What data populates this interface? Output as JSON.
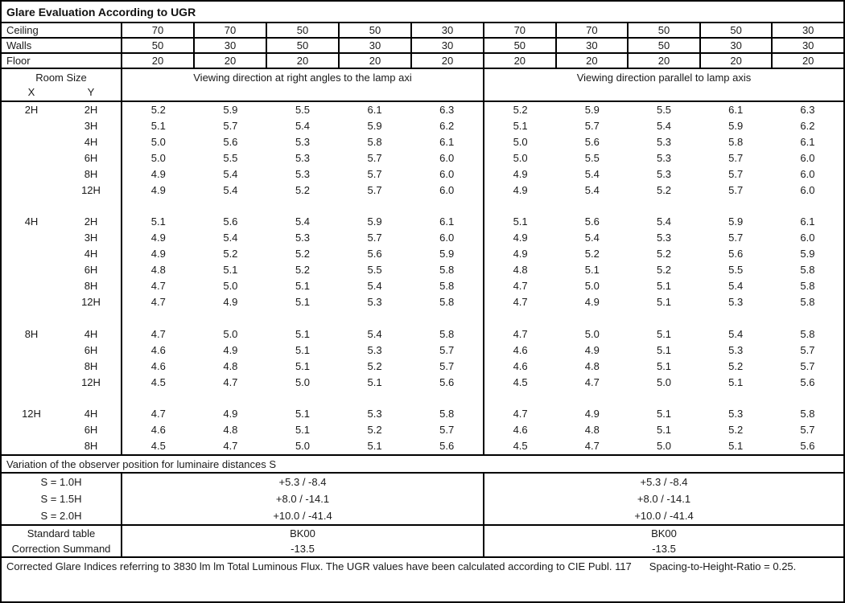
{
  "title": "Glare Evaluation According to UGR",
  "colors": {
    "border": "#000000",
    "text": "#1a1a1a",
    "background": "#ffffff"
  },
  "surface_rows": [
    {
      "label": "Ceiling",
      "values": [
        "70",
        "70",
        "50",
        "50",
        "30",
        "70",
        "70",
        "50",
        "50",
        "30"
      ]
    },
    {
      "label": "Walls",
      "values": [
        "50",
        "30",
        "50",
        "30",
        "30",
        "50",
        "30",
        "50",
        "30",
        "30"
      ]
    },
    {
      "label": "Floor",
      "values": [
        "20",
        "20",
        "20",
        "20",
        "20",
        "20",
        "20",
        "20",
        "20",
        "20"
      ]
    }
  ],
  "room_size": {
    "title": "Room Size",
    "x": "X",
    "y": "Y"
  },
  "viewing": {
    "left": "Viewing direction at right angles to the lamp axi",
    "right": "Viewing direction parallel to lamp axis"
  },
  "ugr_blocks": [
    {
      "x": "2H",
      "rows": [
        {
          "y": "2H",
          "left": [
            "5.2",
            "5.9",
            "5.5",
            "6.1",
            "6.3"
          ],
          "right": [
            "5.2",
            "5.9",
            "5.5",
            "6.1",
            "6.3"
          ]
        },
        {
          "y": "3H",
          "left": [
            "5.1",
            "5.7",
            "5.4",
            "5.9",
            "6.2"
          ],
          "right": [
            "5.1",
            "5.7",
            "5.4",
            "5.9",
            "6.2"
          ]
        },
        {
          "y": "4H",
          "left": [
            "5.0",
            "5.6",
            "5.3",
            "5.8",
            "6.1"
          ],
          "right": [
            "5.0",
            "5.6",
            "5.3",
            "5.8",
            "6.1"
          ]
        },
        {
          "y": "6H",
          "left": [
            "5.0",
            "5.5",
            "5.3",
            "5.7",
            "6.0"
          ],
          "right": [
            "5.0",
            "5.5",
            "5.3",
            "5.7",
            "6.0"
          ]
        },
        {
          "y": "8H",
          "left": [
            "4.9",
            "5.4",
            "5.3",
            "5.7",
            "6.0"
          ],
          "right": [
            "4.9",
            "5.4",
            "5.3",
            "5.7",
            "6.0"
          ]
        },
        {
          "y": "12H",
          "left": [
            "4.9",
            "5.4",
            "5.2",
            "5.7",
            "6.0"
          ],
          "right": [
            "4.9",
            "5.4",
            "5.2",
            "5.7",
            "6.0"
          ]
        }
      ]
    },
    {
      "x": "4H",
      "rows": [
        {
          "y": "2H",
          "left": [
            "5.1",
            "5.6",
            "5.4",
            "5.9",
            "6.1"
          ],
          "right": [
            "5.1",
            "5.6",
            "5.4",
            "5.9",
            "6.1"
          ]
        },
        {
          "y": "3H",
          "left": [
            "4.9",
            "5.4",
            "5.3",
            "5.7",
            "6.0"
          ],
          "right": [
            "4.9",
            "5.4",
            "5.3",
            "5.7",
            "6.0"
          ]
        },
        {
          "y": "4H",
          "left": [
            "4.9",
            "5.2",
            "5.2",
            "5.6",
            "5.9"
          ],
          "right": [
            "4.9",
            "5.2",
            "5.2",
            "5.6",
            "5.9"
          ]
        },
        {
          "y": "6H",
          "left": [
            "4.8",
            "5.1",
            "5.2",
            "5.5",
            "5.8"
          ],
          "right": [
            "4.8",
            "5.1",
            "5.2",
            "5.5",
            "5.8"
          ]
        },
        {
          "y": "8H",
          "left": [
            "4.7",
            "5.0",
            "5.1",
            "5.4",
            "5.8"
          ],
          "right": [
            "4.7",
            "5.0",
            "5.1",
            "5.4",
            "5.8"
          ]
        },
        {
          "y": "12H",
          "left": [
            "4.7",
            "4.9",
            "5.1",
            "5.3",
            "5.8"
          ],
          "right": [
            "4.7",
            "4.9",
            "5.1",
            "5.3",
            "5.8"
          ]
        }
      ]
    },
    {
      "x": "8H",
      "rows": [
        {
          "y": "4H",
          "left": [
            "4.7",
            "5.0",
            "5.1",
            "5.4",
            "5.8"
          ],
          "right": [
            "4.7",
            "5.0",
            "5.1",
            "5.4",
            "5.8"
          ]
        },
        {
          "y": "6H",
          "left": [
            "4.6",
            "4.9",
            "5.1",
            "5.3",
            "5.7"
          ],
          "right": [
            "4.6",
            "4.9",
            "5.1",
            "5.3",
            "5.7"
          ]
        },
        {
          "y": "8H",
          "left": [
            "4.6",
            "4.8",
            "5.1",
            "5.2",
            "5.7"
          ],
          "right": [
            "4.6",
            "4.8",
            "5.1",
            "5.2",
            "5.7"
          ]
        },
        {
          "y": "12H",
          "left": [
            "4.5",
            "4.7",
            "5.0",
            "5.1",
            "5.6"
          ],
          "right": [
            "4.5",
            "4.7",
            "5.0",
            "5.1",
            "5.6"
          ]
        }
      ]
    },
    {
      "x": "12H",
      "rows": [
        {
          "y": "4H",
          "left": [
            "4.7",
            "4.9",
            "5.1",
            "5.3",
            "5.8"
          ],
          "right": [
            "4.7",
            "4.9",
            "5.1",
            "5.3",
            "5.8"
          ]
        },
        {
          "y": "6H",
          "left": [
            "4.6",
            "4.8",
            "5.1",
            "5.2",
            "5.7"
          ],
          "right": [
            "4.6",
            "4.8",
            "5.1",
            "5.2",
            "5.7"
          ]
        },
        {
          "y": "8H",
          "left": [
            "4.5",
            "4.7",
            "5.0",
            "5.1",
            "5.6"
          ],
          "right": [
            "4.5",
            "4.7",
            "5.0",
            "5.1",
            "5.6"
          ]
        }
      ]
    }
  ],
  "variation": {
    "title": "Variation of the observer position for luminaire distances S",
    "rows": [
      {
        "label": "S = 1.0H",
        "left": "+5.3 / -8.4",
        "right": "+5.3 / -8.4"
      },
      {
        "label": "S = 1.5H",
        "left": "+8.0 / -14.1",
        "right": "+8.0 / -14.1"
      },
      {
        "label": "S = 2.0H",
        "left": "+10.0 / -41.4",
        "right": "+10.0 / -41.4"
      }
    ]
  },
  "summary": {
    "rows": [
      {
        "label": "Standard table",
        "left": "BK00",
        "right": "BK00"
      },
      {
        "label": "Correction Summand",
        "left": "-13.5",
        "right": "-13.5"
      }
    ]
  },
  "footer": {
    "text": "Corrected Glare Indices referring to 3830 lm lm Total Luminous Flux. The UGR values have been calculated according to CIE Publ. 117",
    "ratio": "Spacing-to-Height-Ratio = 0.25."
  }
}
